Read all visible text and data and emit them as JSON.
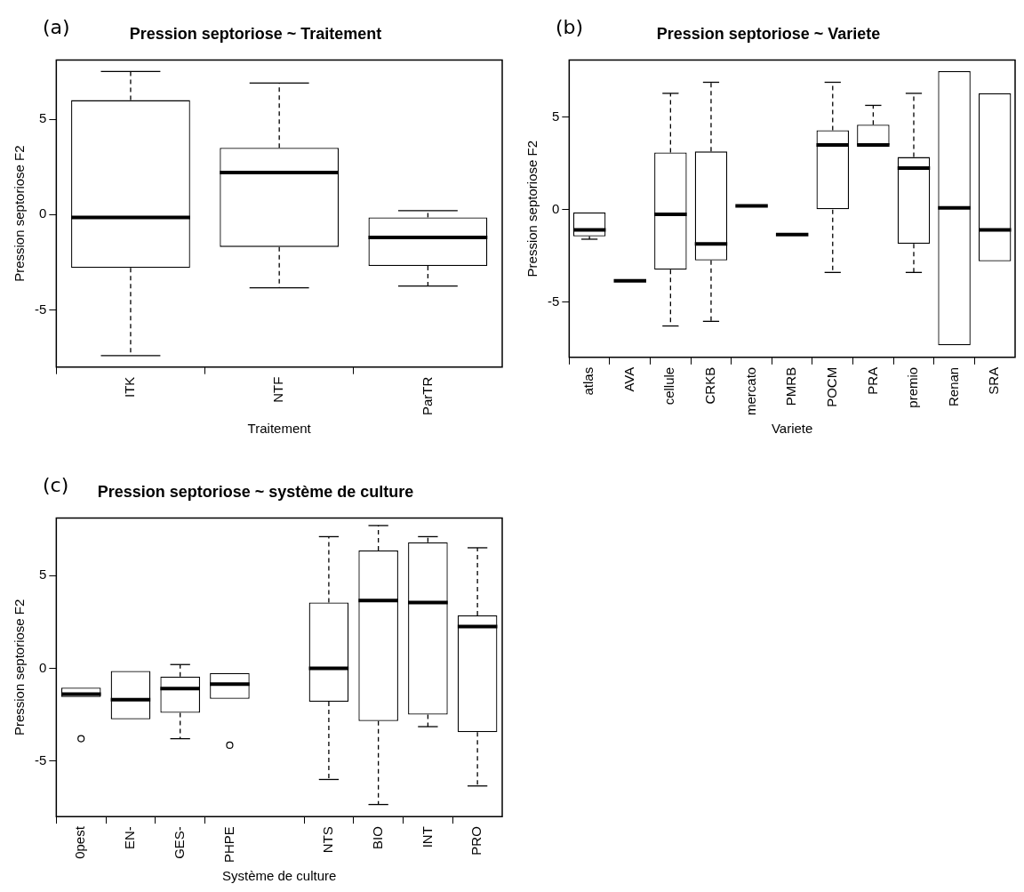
{
  "chart_data": [
    {
      "type": "box",
      "title": "Pression septoriose ~ Traitement",
      "xlabel": "Traitement",
      "ylabel": "Pression septoriose F2",
      "annotations": [
        "(a)"
      ],
      "categories": [
        "ITK",
        "NTF",
        "ParTR"
      ],
      "boxes": [
        {
          "low": -7.4,
          "q1": -2.8,
          "median": -0.15,
          "q3": 6,
          "high": 7.5
        },
        {
          "low": -3.85,
          "q1": -1.7,
          "median": 2.2,
          "q3": 3.5,
          "high": 6.9
        },
        {
          "low": -3.75,
          "q1": -2.7,
          "median": -1.2,
          "q3": -0.15,
          "high": 0.2
        }
      ],
      "ylim": [
        -8,
        8.1
      ],
      "yticks": [
        -5,
        0,
        5
      ]
    },
    {
      "type": "box",
      "title": "Pression septoriose ~ Variete",
      "xlabel": "Variete",
      "ylabel": "Pression septoriose F2",
      "annotations": [
        "(b)"
      ],
      "categories": [
        "atlas",
        "AVA",
        "cellule",
        "CRKB",
        "mercato",
        "PMRB",
        "POCM",
        "PRA",
        "premio",
        "Renan",
        "SRA"
      ],
      "boxes": [
        {
          "low": -1.6,
          "q1": -1.45,
          "median": -1.1,
          "q3": -0.15,
          "high": -0.15
        },
        {
          "low": -3.85,
          "q1": -3.85,
          "median": -3.85,
          "q3": -3.85,
          "high": -3.85
        },
        {
          "low": -6.3,
          "q1": -3.25,
          "median": -0.25,
          "q3": 3.1,
          "high": 6.3
        },
        {
          "low": -6.05,
          "q1": -2.75,
          "median": -1.85,
          "q3": 3.15,
          "high": 6.9
        },
        {
          "low": 0.2,
          "q1": 0.2,
          "median": 0.2,
          "q3": 0.2,
          "high": 0.2
        },
        {
          "low": -1.35,
          "q1": -1.35,
          "median": -1.35,
          "q3": -1.35,
          "high": -1.35
        },
        {
          "low": -3.4,
          "q1": 0,
          "median": 3.5,
          "q3": 4.3,
          "high": 6.9
        },
        {
          "low": 3.5,
          "q1": 3.5,
          "median": 3.5,
          "q3": 4.6,
          "high": 5.65
        },
        {
          "low": -3.4,
          "q1": -1.85,
          "median": 2.25,
          "q3": 2.85,
          "high": 6.3
        },
        {
          "low": -7.35,
          "q1": -7.35,
          "median": 0.1,
          "q3": 7.5,
          "high": 7.5
        },
        {
          "low": -2.8,
          "q1": -2.8,
          "median": -1.1,
          "q3": 6.3,
          "high": 6.3
        }
      ],
      "ylim": [
        -8,
        8.1
      ],
      "yticks": [
        -5,
        0,
        5
      ]
    },
    {
      "type": "box",
      "title": "Pression septoriose ~ système de culture",
      "xlabel": "Système de culture",
      "ylabel": "Pression septoriose F2",
      "annotations": [
        "(c)"
      ],
      "categories": [
        "0pest",
        "EN-",
        "GES-",
        "PHPE",
        null,
        "NTS",
        "BIO",
        "INT",
        "PRO"
      ],
      "boxes": [
        {
          "low": -1.55,
          "q1": -1.55,
          "median": -1.4,
          "q3": -1.05,
          "high": -1.05,
          "outliers": [
            -3.8
          ]
        },
        {
          "low": -2.75,
          "q1": -2.75,
          "median": -1.7,
          "q3": -0.15,
          "high": -0.15
        },
        {
          "low": -3.8,
          "q1": -2.4,
          "median": -1.1,
          "q3": -0.45,
          "high": 0.2
        },
        {
          "low": -1.65,
          "q1": -1.65,
          "median": -0.85,
          "q3": -0.25,
          "high": -0.25,
          "outliers": [
            -4.15
          ]
        },
        null,
        {
          "low": -6,
          "q1": -1.8,
          "median": 0,
          "q3": 3.55,
          "high": 7.1
        },
        {
          "low": -7.35,
          "q1": -2.85,
          "median": 3.65,
          "q3": 6.35,
          "high": 7.7
        },
        {
          "low": -3.15,
          "q1": -2.5,
          "median": 3.55,
          "q3": 6.8,
          "high": 7.1
        },
        {
          "low": -6.35,
          "q1": -3.45,
          "median": 2.25,
          "q3": 2.85,
          "high": 6.5
        }
      ],
      "ylim": [
        -8,
        8.1
      ],
      "yticks": [
        -5,
        0,
        5
      ]
    }
  ]
}
